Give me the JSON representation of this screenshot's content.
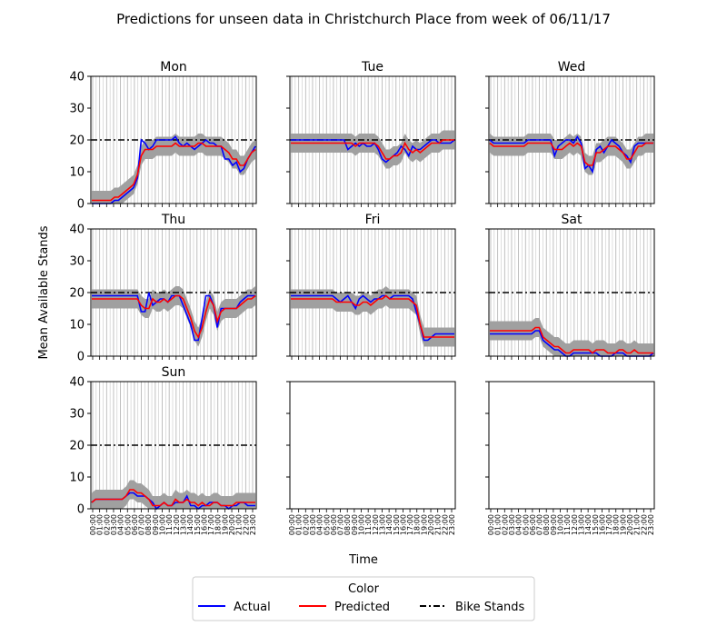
{
  "chart_data": {
    "type": "line",
    "title": "Predictions for unseen data in Christchurch Place from week of 06/11/17",
    "xlabel": "Time",
    "ylabel": "Mean Available Stands",
    "ylim": [
      0,
      40
    ],
    "yticks": [
      0,
      10,
      20,
      30,
      40
    ],
    "grid": "vertical",
    "x_tick_labels": [
      "00:00",
      "01:00",
      "02:00",
      "03:00",
      "04:00",
      "05:00",
      "06:00",
      "07:00",
      "08:00",
      "09:00",
      "10:00",
      "11:00",
      "12:00",
      "13:00",
      "14:00",
      "15:00",
      "16:00",
      "17:00",
      "18:00",
      "19:00",
      "20:00",
      "21:00",
      "22:00",
      "23:00"
    ],
    "legend": {
      "title": "Color",
      "placement": "bottom-center",
      "entries": [
        {
          "label": "Actual",
          "color": "#0000ff",
          "style": "solid"
        },
        {
          "label": "Predicted",
          "color": "#ff0000",
          "style": "solid"
        },
        {
          "label": "Bike Stands",
          "color": "#000000",
          "style": "dashdot"
        }
      ]
    },
    "bike_stands": 20,
    "band_color": "#a0a0a0",
    "panels": [
      {
        "day": "Mon",
        "actual": [
          0,
          0,
          0,
          0,
          0,
          0,
          1,
          1,
          2,
          3,
          4,
          5,
          8,
          20,
          19,
          17,
          18,
          20,
          20,
          20,
          20,
          20,
          21,
          19,
          18,
          19,
          18,
          17,
          18,
          19,
          20,
          19,
          19,
          18,
          18,
          14,
          14,
          12,
          13,
          10,
          11,
          14,
          16,
          18
        ],
        "predicted": [
          1,
          1,
          1,
          1,
          1,
          1,
          2,
          2,
          3,
          4,
          5,
          6,
          9,
          15,
          17,
          17,
          17,
          18,
          18,
          18,
          18,
          18,
          19,
          18,
          18,
          18,
          18,
          18,
          19,
          19,
          18,
          18,
          18,
          18,
          18,
          17,
          16,
          14,
          14,
          12,
          12,
          14,
          16,
          17
        ]
      },
      {
        "day": "Tue",
        "actual": [
          20,
          20,
          20,
          20,
          20,
          20,
          20,
          20,
          20,
          20,
          20,
          20,
          20,
          20,
          20,
          17,
          18,
          19,
          18,
          19,
          18,
          18,
          19,
          17,
          14,
          13,
          14,
          15,
          16,
          18,
          17,
          15,
          18,
          17,
          17,
          18,
          19,
          20,
          20,
          19,
          19,
          19,
          19,
          20
        ],
        "predicted": [
          19,
          19,
          19,
          19,
          19,
          19,
          19,
          19,
          19,
          19,
          19,
          19,
          19,
          19,
          19,
          19,
          19,
          18,
          19,
          19,
          19,
          19,
          19,
          18,
          16,
          14,
          14,
          15,
          15,
          16,
          19,
          17,
          16,
          17,
          16,
          17,
          18,
          19,
          19,
          19,
          20,
          20,
          20,
          20
        ]
      },
      {
        "day": "Wed",
        "actual": [
          20,
          19,
          19,
          19,
          19,
          19,
          19,
          19,
          19,
          19,
          20,
          20,
          20,
          20,
          20,
          20,
          20,
          15,
          18,
          19,
          20,
          20,
          19,
          21,
          19,
          11,
          12,
          10,
          17,
          18,
          16,
          18,
          20,
          19,
          18,
          16,
          15,
          13,
          18,
          19,
          19,
          19,
          19,
          19
        ],
        "predicted": [
          19,
          18,
          18,
          18,
          18,
          18,
          18,
          18,
          18,
          18,
          19,
          19,
          19,
          19,
          19,
          19,
          19,
          17,
          17,
          17,
          18,
          19,
          18,
          19,
          18,
          13,
          12,
          12,
          16,
          16,
          17,
          18,
          18,
          18,
          17,
          16,
          14,
          14,
          16,
          18,
          18,
          19,
          19,
          19
        ]
      },
      {
        "day": "Thu",
        "actual": [
          19,
          19,
          19,
          19,
          19,
          19,
          19,
          19,
          19,
          19,
          19,
          19,
          19,
          14,
          14,
          20,
          16,
          17,
          18,
          18,
          17,
          19,
          19,
          19,
          16,
          13,
          10,
          5,
          5,
          12,
          19,
          19,
          16,
          9,
          15,
          15,
          15,
          15,
          15,
          17,
          18,
          19,
          19,
          19
        ],
        "predicted": [
          18,
          18,
          18,
          18,
          18,
          18,
          18,
          18,
          18,
          18,
          18,
          18,
          18,
          16,
          15,
          15,
          18,
          17,
          17,
          18,
          17,
          18,
          19,
          19,
          18,
          15,
          12,
          8,
          6,
          9,
          14,
          18,
          16,
          11,
          14,
          15,
          15,
          15,
          15,
          16,
          17,
          18,
          18,
          19
        ]
      },
      {
        "day": "Fri",
        "actual": [
          19,
          19,
          19,
          19,
          19,
          19,
          19,
          19,
          19,
          19,
          19,
          19,
          18,
          17,
          18,
          19,
          17,
          15,
          18,
          19,
          18,
          17,
          18,
          18,
          19,
          19,
          18,
          19,
          19,
          19,
          19,
          19,
          18,
          14,
          10,
          5,
          5,
          6,
          7,
          7,
          7,
          7,
          7,
          7
        ],
        "predicted": [
          18,
          18,
          18,
          18,
          18,
          18,
          18,
          18,
          18,
          18,
          18,
          18,
          17,
          17,
          17,
          17,
          17,
          16,
          16,
          17,
          17,
          16,
          17,
          18,
          18,
          19,
          18,
          18,
          18,
          18,
          18,
          18,
          17,
          16,
          10,
          6,
          6,
          6,
          6,
          6,
          6,
          6,
          6,
          6
        ],
        "dip_end": true
      },
      {
        "day": "Sat",
        "actual": [
          7,
          7,
          7,
          7,
          7,
          7,
          7,
          7,
          7,
          7,
          7,
          7,
          8,
          8,
          5,
          4,
          3,
          2,
          2,
          1,
          0,
          0,
          1,
          1,
          1,
          1,
          1,
          1,
          1,
          0,
          0,
          0,
          0,
          1,
          1,
          1,
          0,
          0,
          0,
          0,
          0,
          0,
          0,
          1
        ],
        "predicted": [
          8,
          8,
          8,
          8,
          8,
          8,
          8,
          8,
          8,
          8,
          8,
          8,
          9,
          9,
          6,
          5,
          4,
          3,
          3,
          2,
          1,
          1,
          2,
          2,
          2,
          2,
          2,
          1,
          2,
          2,
          2,
          1,
          1,
          1,
          2,
          2,
          1,
          1,
          2,
          1,
          1,
          1,
          1,
          1
        ]
      },
      {
        "day": "Sun",
        "actual": [
          2,
          3,
          3,
          3,
          3,
          3,
          3,
          3,
          3,
          4,
          5,
          5,
          4,
          4,
          4,
          3,
          2,
          0,
          1,
          2,
          1,
          1,
          2,
          2,
          2,
          4,
          1,
          1,
          0,
          1,
          1,
          2,
          2,
          2,
          1,
          1,
          0,
          1,
          1,
          2,
          2,
          1,
          1,
          1
        ],
        "predicted": [
          2,
          3,
          3,
          3,
          3,
          3,
          3,
          3,
          3,
          4,
          6,
          6,
          5,
          5,
          4,
          3,
          1,
          1,
          1,
          2,
          1,
          1,
          3,
          2,
          2,
          3,
          2,
          2,
          1,
          2,
          1,
          1,
          2,
          2,
          1,
          1,
          1,
          1,
          2,
          2,
          2,
          2,
          2,
          2
        ]
      },
      {
        "day": "",
        "actual": [],
        "predicted": []
      },
      {
        "day": "",
        "actual": [],
        "predicted": []
      }
    ]
  }
}
